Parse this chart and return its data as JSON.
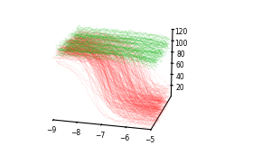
{
  "x_min": -9,
  "x_max": -5,
  "y_min": 0,
  "y_max": 120,
  "x_ticks": [
    -9,
    -8,
    -7,
    -6,
    -5
  ],
  "y_ticks": [
    20,
    40,
    60,
    80,
    100,
    120
  ],
  "n_red": 250,
  "n_green": 80,
  "active_color": "#ff2222",
  "inconclusive_color": "#22bb22",
  "background_color": "#ffffff",
  "alpha_red": 0.15,
  "alpha_green": 0.3,
  "seed": 7,
  "elev": 18,
  "azim": -75,
  "figwidth": 3.0,
  "figheight": 1.82,
  "dpi": 100
}
